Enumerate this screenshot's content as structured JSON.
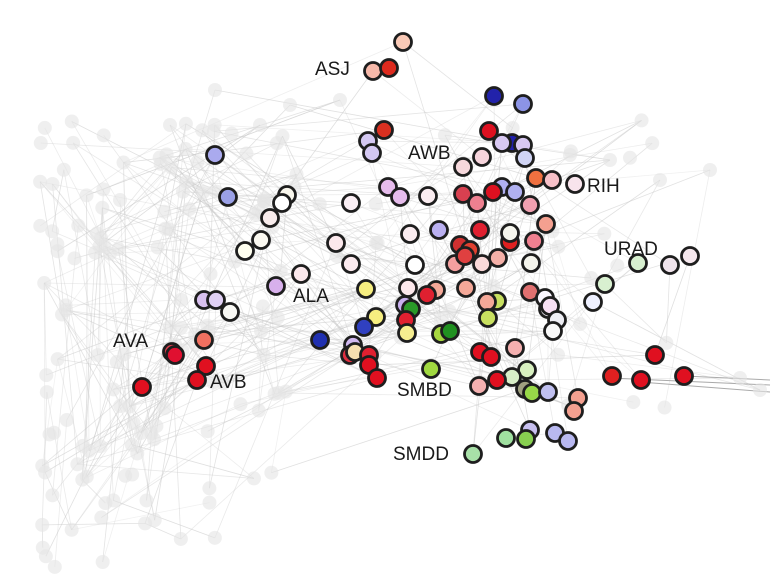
{
  "network": {
    "node_labels": [
      "ASJ",
      "AWB",
      "RIH",
      "URAD",
      "ALA",
      "AVA",
      "AVB",
      "SMBD",
      "SMDD"
    ],
    "colors": {
      "node_outline": "#1e1e1e",
      "edge": "#c8c8c8",
      "background_node": "#e4e4e4"
    }
  }
}
